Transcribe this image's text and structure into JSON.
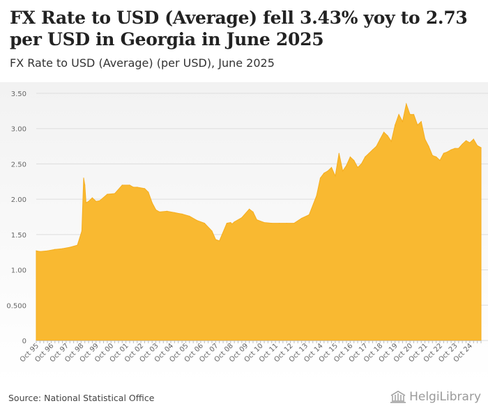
{
  "header": {
    "title": "FX Rate to USD (Average) fell 3.43% yoy to 2.73 per USD in Georgia in June 2025",
    "subtitle": "FX Rate to USD (Average) (per USD), June 2025"
  },
  "footer": {
    "source": "Source: National Statistical Office",
    "brand": "HelgiLibrary"
  },
  "colors": {
    "area_fill": "#f9b931",
    "area_stroke": "#f5ad1e",
    "grid": "#dddddd",
    "tick_text": "#666666"
  },
  "chart_data": {
    "type": "area",
    "title": "FX Rate to USD (Average) fell 3.43% yoy to 2.73 per USD in Georgia in June 2025",
    "subtitle": "FX Rate to USD (Average) (per USD), June 2025",
    "xlabel": "",
    "ylabel": "",
    "ylim": [
      0,
      3.5
    ],
    "xlim": [
      1995.75,
      2025.5
    ],
    "grid": true,
    "legend": "none",
    "y_ticks": [
      {
        "value": 0,
        "label": "0"
      },
      {
        "value": 0.5,
        "label": "0.500"
      },
      {
        "value": 1.0,
        "label": "1.00"
      },
      {
        "value": 1.5,
        "label": "1.50"
      },
      {
        "value": 2.0,
        "label": "2.00"
      },
      {
        "value": 2.5,
        "label": "2.50"
      },
      {
        "value": 3.0,
        "label": "3.00"
      },
      {
        "value": 3.5,
        "label": "3.50"
      }
    ],
    "x_ticks": [
      {
        "value": 1995.75,
        "label": "Oct 95"
      },
      {
        "value": 1996.75,
        "label": "Oct 96"
      },
      {
        "value": 1997.75,
        "label": "Oct 97"
      },
      {
        "value": 1998.75,
        "label": "Oct 98"
      },
      {
        "value": 1999.75,
        "label": "Oct 99"
      },
      {
        "value": 2000.75,
        "label": "Oct 00"
      },
      {
        "value": 2001.75,
        "label": "Oct 01"
      },
      {
        "value": 2002.75,
        "label": "Oct 02"
      },
      {
        "value": 2003.75,
        "label": "Oct 03"
      },
      {
        "value": 2004.75,
        "label": "Oct 04"
      },
      {
        "value": 2005.75,
        "label": "Oct 05"
      },
      {
        "value": 2006.75,
        "label": "Oct 06"
      },
      {
        "value": 2007.75,
        "label": "Oct 07"
      },
      {
        "value": 2008.75,
        "label": "Oct 08"
      },
      {
        "value": 2009.75,
        "label": "Oct 09"
      },
      {
        "value": 2010.75,
        "label": "Oct 10"
      },
      {
        "value": 2011.75,
        "label": "Oct 11"
      },
      {
        "value": 2012.75,
        "label": "Oct 12"
      },
      {
        "value": 2013.75,
        "label": "Oct 13"
      },
      {
        "value": 2014.75,
        "label": "Oct 14"
      },
      {
        "value": 2015.75,
        "label": "Oct 15"
      },
      {
        "value": 2016.75,
        "label": "Oct 16"
      },
      {
        "value": 2017.75,
        "label": "Oct 17"
      },
      {
        "value": 2018.75,
        "label": "Oct 18"
      },
      {
        "value": 2019.75,
        "label": "Oct 19"
      },
      {
        "value": 2020.75,
        "label": "Oct 20"
      },
      {
        "value": 2021.75,
        "label": "Oct 21"
      },
      {
        "value": 2022.75,
        "label": "Oct 22"
      },
      {
        "value": 2023.75,
        "label": "Oct 23"
      },
      {
        "value": 2024.75,
        "label": "Oct 24"
      }
    ],
    "series": [
      {
        "name": "FX Rate to USD (Average)",
        "x": [
          1995.75,
          1996.0,
          1996.5,
          1997.0,
          1997.5,
          1998.0,
          1998.5,
          1998.8,
          1998.92,
          1999.0,
          1999.08,
          1999.25,
          1999.5,
          1999.75,
          2000.0,
          2000.5,
          2001.0,
          2001.5,
          2002.0,
          2002.25,
          2002.5,
          2003.0,
          2003.25,
          2003.5,
          2003.75,
          2004.0,
          2004.5,
          2005.0,
          2005.5,
          2006.0,
          2006.5,
          2007.0,
          2007.5,
          2007.75,
          2008.0,
          2008.5,
          2008.75,
          2008.85,
          2009.0,
          2009.5,
          2010.0,
          2010.25,
          2010.5,
          2011.0,
          2011.5,
          2012.0,
          2012.5,
          2013.0,
          2013.5,
          2014.0,
          2014.5,
          2014.75,
          2015.0,
          2015.25,
          2015.5,
          2015.75,
          2016.0,
          2016.25,
          2016.5,
          2016.75,
          2017.0,
          2017.25,
          2017.5,
          2017.75,
          2018.0,
          2018.25,
          2018.5,
          2018.75,
          2019.0,
          2019.25,
          2019.5,
          2019.75,
          2020.0,
          2020.25,
          2020.5,
          2020.75,
          2021.0,
          2021.25,
          2021.5,
          2021.75,
          2022.0,
          2022.25,
          2022.5,
          2022.75,
          2023.0,
          2023.25,
          2023.5,
          2023.75,
          2024.0,
          2024.25,
          2024.5,
          2024.75,
          2025.0,
          2025.25,
          2025.5
        ],
        "values": [
          1.27,
          1.26,
          1.27,
          1.29,
          1.3,
          1.32,
          1.35,
          1.55,
          2.3,
          2.2,
          1.95,
          1.97,
          2.02,
          1.97,
          1.98,
          2.07,
          2.08,
          2.2,
          2.2,
          2.17,
          2.17,
          2.15,
          2.1,
          1.95,
          1.85,
          1.82,
          1.83,
          1.81,
          1.79,
          1.76,
          1.7,
          1.66,
          1.55,
          1.43,
          1.41,
          1.66,
          1.67,
          1.65,
          1.68,
          1.74,
          1.86,
          1.82,
          1.71,
          1.67,
          1.66,
          1.66,
          1.66,
          1.66,
          1.73,
          1.78,
          2.05,
          2.3,
          2.37,
          2.4,
          2.45,
          2.33,
          2.65,
          2.4,
          2.48,
          2.6,
          2.55,
          2.45,
          2.5,
          2.6,
          2.65,
          2.7,
          2.75,
          2.85,
          2.95,
          2.9,
          2.82,
          3.05,
          3.2,
          3.1,
          3.35,
          3.2,
          3.2,
          3.05,
          3.1,
          2.85,
          2.75,
          2.62,
          2.6,
          2.55,
          2.65,
          2.67,
          2.7,
          2.72,
          2.72,
          2.78,
          2.83,
          2.8,
          2.85,
          2.76,
          2.73
        ]
      }
    ]
  }
}
